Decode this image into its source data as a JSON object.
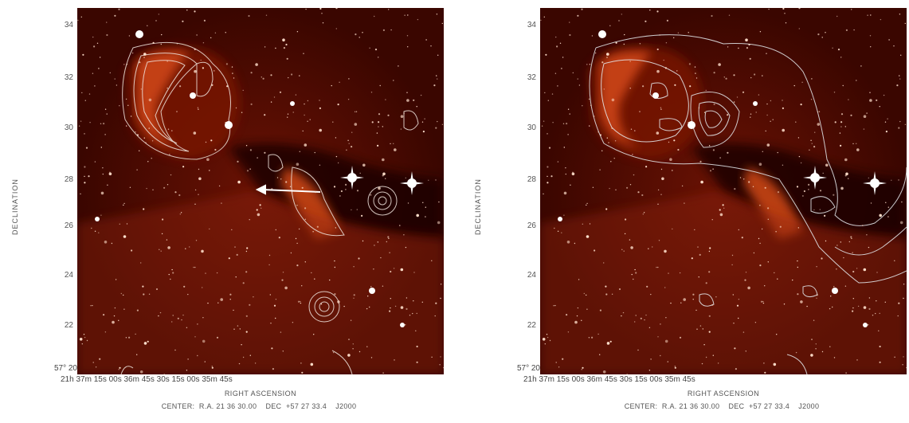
{
  "panels": [
    {
      "y_axis_label": "DECLINATION",
      "y_ticks": [
        "34",
        "32",
        "30",
        "28",
        "26",
        "24",
        "22"
      ],
      "y_origin": "57° 20",
      "x_ticks": "21h 37m 15s 00s 36m 45s 30s 15s 00s 35m 45s",
      "x_axis_label": "RIGHT ASCENSION",
      "center_text": "CENTER:  R.A. 21 36 30.00    DEC  +57 27 33.4    J2000"
    },
    {
      "y_axis_label": "DECLINATION",
      "y_ticks": [
        "34",
        "32",
        "30",
        "28",
        "26",
        "24",
        "22"
      ],
      "y_origin": "57° 20",
      "x_ticks": "21h 37m 15s 00s 36m 45s 30s 15s 00s 35m 45s",
      "x_axis_label": "RIGHT ASCENSION",
      "center_text": "CENTER:  R.A. 21 36 30.00    DEC  +57 27 33.4    J2000"
    }
  ],
  "colors": {
    "background": "#3a0600",
    "nebula": "#c8320c",
    "contour": "#f0e6e0",
    "star": "#ffffff"
  }
}
